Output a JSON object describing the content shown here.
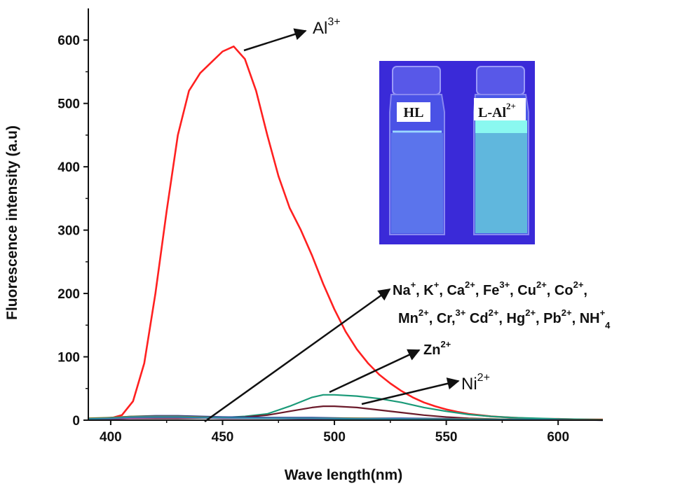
{
  "chart_data": {
    "type": "line",
    "xlabel": "Wave length(nm)",
    "ylabel": "Fluorescence intensity (a.u)",
    "xlim": [
      390,
      620
    ],
    "ylim": [
      0,
      650
    ],
    "xticks": [
      400,
      450,
      500,
      550,
      600
    ],
    "yticks": [
      0,
      100,
      200,
      300,
      400,
      500,
      600
    ],
    "grid": false,
    "series": [
      {
        "color": "#ff2020",
        "x": [
          390,
          400,
          405,
          410,
          415,
          420,
          425,
          430,
          435,
          440,
          445,
          450,
          455,
          460,
          465,
          470,
          475,
          480,
          485,
          490,
          495,
          500,
          505,
          510,
          515,
          520,
          525,
          530,
          535,
          540,
          545,
          550,
          555,
          560,
          565,
          570,
          575,
          580,
          585,
          590,
          600,
          610,
          620
        ],
        "y": [
          1,
          3,
          8,
          30,
          90,
          200,
          330,
          450,
          520,
          548,
          565,
          582,
          590,
          570,
          520,
          450,
          385,
          335,
          300,
          260,
          215,
          175,
          140,
          112,
          90,
          72,
          58,
          46,
          36,
          28,
          22,
          17,
          13,
          10,
          8,
          6,
          5,
          4,
          3,
          2,
          2,
          1,
          1
        ]
      },
      {
        "color": "#1a9a78",
        "x": [
          390,
          410,
          430,
          450,
          460,
          470,
          480,
          490,
          495,
          500,
          510,
          520,
          530,
          540,
          550,
          560,
          570,
          580,
          600,
          620
        ],
        "y": [
          2,
          3,
          4,
          4,
          6,
          10,
          22,
          36,
          40,
          40,
          38,
          34,
          28,
          20,
          14,
          9,
          6,
          4,
          2,
          1
        ]
      },
      {
        "color": "#6b1a2a",
        "x": [
          390,
          410,
          430,
          450,
          460,
          470,
          480,
          490,
          495,
          500,
          510,
          520,
          530,
          540,
          550,
          560,
          570,
          580,
          600,
          620
        ],
        "y": [
          2,
          3,
          3,
          4,
          5,
          8,
          14,
          20,
          22,
          22,
          20,
          16,
          12,
          8,
          5,
          3,
          2,
          1,
          1,
          0
        ]
      },
      {
        "color": "#2a3a9a",
        "x": [
          390,
          400,
          410,
          420,
          430,
          440,
          450,
          470,
          490,
          510,
          530,
          560,
          590,
          620
        ],
        "y": [
          2,
          4,
          6,
          7,
          7,
          6,
          5,
          4,
          4,
          3,
          3,
          2,
          1,
          1
        ]
      },
      {
        "color": "#7a7a30",
        "x": [
          390,
          400,
          410,
          420,
          430,
          440,
          450,
          470,
          490,
          510,
          530,
          560,
          590,
          620
        ],
        "y": [
          3,
          4,
          6,
          6,
          6,
          5,
          4,
          3,
          3,
          3,
          2,
          2,
          1,
          1
        ]
      },
      {
        "color": "#8a3a8a",
        "x": [
          390,
          400,
          410,
          420,
          430,
          440,
          450,
          470,
          490,
          510,
          530,
          560,
          590,
          620
        ],
        "y": [
          1,
          2,
          3,
          4,
          4,
          4,
          3,
          3,
          2,
          2,
          2,
          1,
          1,
          0
        ]
      },
      {
        "color": "#2a8aa8",
        "x": [
          390,
          400,
          410,
          420,
          430,
          440,
          450,
          470,
          490,
          510,
          530,
          560,
          590,
          620
        ],
        "y": [
          2,
          3,
          5,
          5,
          5,
          4,
          4,
          3,
          3,
          2,
          2,
          1,
          1,
          0
        ]
      }
    ],
    "annotations": {
      "al": {
        "base": "Al",
        "sup": "3+"
      },
      "others_line1": [
        {
          "base": "Na",
          "sup": "+",
          "sep": ", "
        },
        {
          "base": "K",
          "sup": "+",
          "sep": ", "
        },
        {
          "base": "Ca",
          "sup": "2+",
          "sep": ", "
        },
        {
          "base": "Fe",
          "sup": "3+",
          "sep": ", "
        },
        {
          "base": "Cu",
          "sup": "2+",
          "sep": ", "
        },
        {
          "base": "Co",
          "sup": "2+",
          "sep": ","
        }
      ],
      "others_line2": [
        {
          "base": "Mn",
          "sup": "2+",
          "sep": ", "
        },
        {
          "base": "Cr,",
          "sup": "3+",
          "sep": " "
        },
        {
          "base": "Cd",
          "sup": "2+",
          "sep": ", "
        },
        {
          "base": "Hg",
          "sup": "2+",
          "sep": ", "
        },
        {
          "base": "Pb",
          "sup": "2+",
          "sep": ", "
        },
        {
          "base": "NH",
          "sup": "+",
          "sub": "4",
          "sep": ""
        }
      ],
      "zn": {
        "base": "Zn",
        "sup": "2+"
      },
      "ni": {
        "base": "Ni",
        "sup": "2+"
      }
    },
    "inset": {
      "vial_left_label": "HL",
      "vial_right_label": "L-Al",
      "vial_right_sup": "2+"
    }
  },
  "colors": {
    "inset_background": "#3a2ad8",
    "axis": "#111111"
  }
}
